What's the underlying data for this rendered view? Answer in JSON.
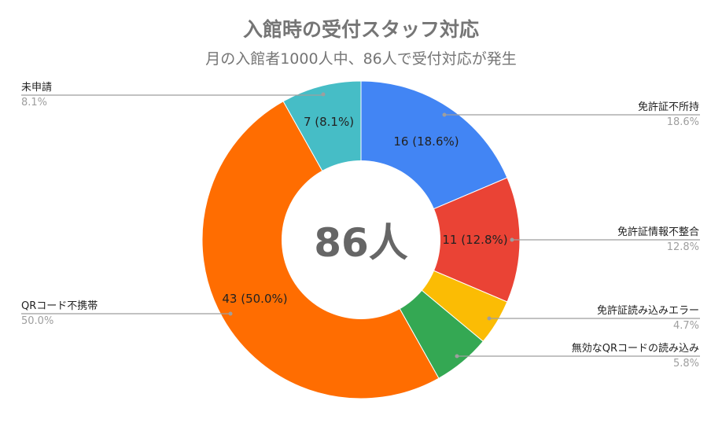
{
  "title": "入館時の受付スタッフ対応",
  "subtitle": "月の入館者1000人中、86人で受付対応が発生",
  "center_label": "86人",
  "chart_data": {
    "type": "pie",
    "variant": "donut",
    "title": "入館時の受付スタッフ対応",
    "subtitle": "月の入館者1000人中、86人で受付対応が発生",
    "center_text": "86人",
    "total": 86,
    "start_angle": "12 o'clock, clockwise",
    "legend_position": "labeled leader lines",
    "slices": [
      {
        "label": "免許証不所持",
        "value": 16,
        "percent": 18.6,
        "color": "#4285f4",
        "slice_text": "16 (18.6%)",
        "pct_text": "18.6%"
      },
      {
        "label": "免許証情報不整合",
        "value": 11,
        "percent": 12.8,
        "color": "#ea4335",
        "slice_text": "11 (12.8%)",
        "pct_text": "12.8%"
      },
      {
        "label": "免許証読み込みエラー",
        "value": 4,
        "percent": 4.7,
        "color": "#fbbc04",
        "slice_text": "",
        "pct_text": "4.7%"
      },
      {
        "label": "無効なQRコードの読み込み",
        "value": 5,
        "percent": 5.8,
        "color": "#34a853",
        "slice_text": "",
        "pct_text": "5.8%"
      },
      {
        "label": "QRコード不携帯",
        "value": 43,
        "percent": 50.0,
        "color": "#ff6d01",
        "slice_text": "43 (50.0%)",
        "pct_text": "50.0%"
      },
      {
        "label": "未申請",
        "value": 7,
        "percent": 8.1,
        "color": "#46bdc6",
        "slice_text": "7 (8.1%)",
        "pct_text": "8.1%"
      }
    ]
  }
}
